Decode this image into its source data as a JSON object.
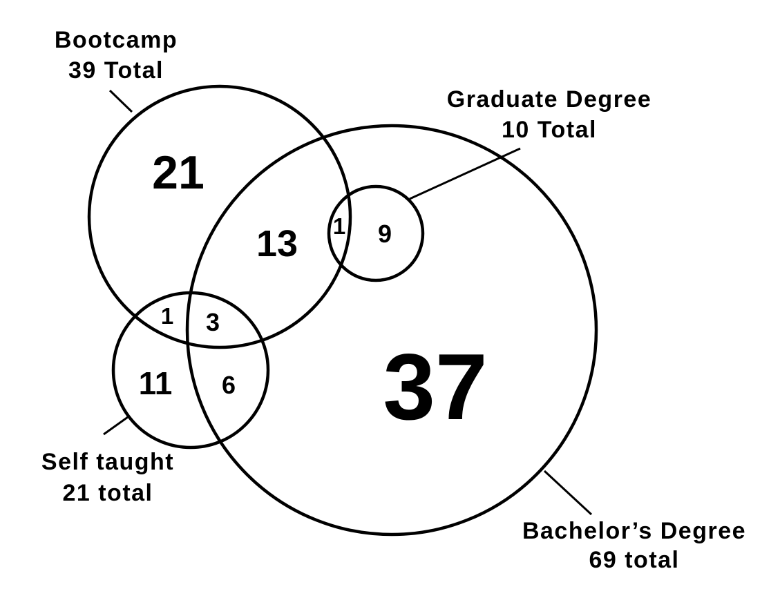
{
  "sets": {
    "bootcamp": {
      "name": "Bootcamp",
      "total_text": "39 Total"
    },
    "graduate": {
      "name": "Graduate Degree",
      "total_text": "10 Total"
    },
    "self_taught": {
      "name": "Self taught",
      "total_text": "21 total"
    },
    "bachelors": {
      "name": "Bachelor’s Degree",
      "total_text": "69 total"
    }
  },
  "regions": {
    "bootcamp_only": "21",
    "bootcamp_bachelors": "13",
    "bootcamp_bachelors_graduate": "1",
    "graduate_bachelors": "9",
    "bootcamp_self_taught": "1",
    "bootcamp_self_taught_bachelors": "3",
    "self_taught_only": "11",
    "self_taught_bachelors": "6",
    "bachelors_only": "37"
  }
}
